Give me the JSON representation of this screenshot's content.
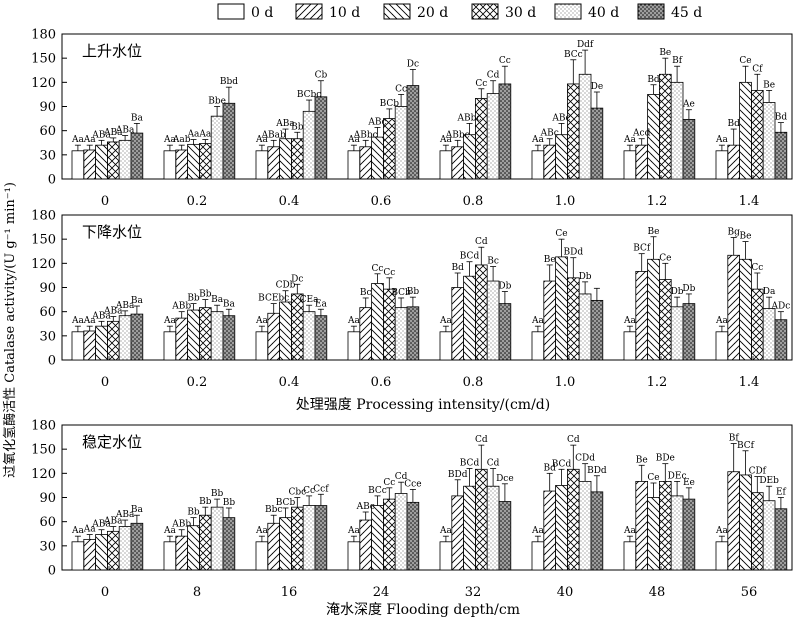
{
  "legend": [
    "0 d",
    "10 d",
    "20 d",
    "30 d",
    "40 d",
    "45 d"
  ],
  "ylabel": "过氧化氢酶活性 Catalase activity/(U g⁻¹ min⁻¹)",
  "chart_data": [
    {
      "type": "bar",
      "title": "上升水位",
      "categories": [
        "0",
        "0.2",
        "0.4",
        "0.6",
        "0.8",
        "1.0",
        "1.2",
        "1.4"
      ],
      "xlabel": "",
      "ylim": [
        0,
        180
      ],
      "yticks": [
        0,
        30,
        60,
        90,
        120,
        150,
        180
      ],
      "series": [
        {
          "name": "0 d",
          "values": [
            35,
            35,
            35,
            35,
            35,
            35,
            35,
            35
          ],
          "err": [
            7,
            7,
            7,
            7,
            7,
            7,
            7,
            7
          ],
          "labels": [
            "Aa",
            "Aa",
            "Aa",
            "Aa",
            "Aa",
            "Aa",
            "Aa",
            "Aa"
          ]
        },
        {
          "name": "10 d",
          "values": [
            36,
            36,
            40,
            40,
            40,
            42,
            42,
            42
          ],
          "err": [
            6,
            6,
            8,
            8,
            8,
            8,
            8,
            20
          ],
          "labels": [
            "Aa",
            "Aab",
            "ABab",
            "ABbc",
            "ABbc",
            "ABc",
            "Acd",
            "Bd"
          ]
        },
        {
          "name": "20 d",
          "values": [
            42,
            43,
            50,
            52,
            55,
            55,
            105,
            120
          ],
          "err": [
            6,
            6,
            12,
            12,
            14,
            14,
            12,
            20
          ],
          "labels": [
            "ABa",
            "Aa",
            "ABa",
            "ABc",
            "ABbc",
            "ABc",
            "Bd",
            "Ce"
          ]
        },
        {
          "name": "30 d",
          "values": [
            46,
            44,
            50,
            75,
            100,
            118,
            130,
            110
          ],
          "err": [
            5,
            5,
            8,
            12,
            12,
            30,
            20,
            20
          ],
          "labels": [
            "ABa",
            "Aa",
            "Bb",
            "BCb",
            "Cc",
            "BCc",
            "Be",
            "Cf"
          ]
        },
        {
          "name": "40 d",
          "values": [
            48,
            78,
            84,
            90,
            106,
            130,
            120,
            95
          ],
          "err": [
            6,
            12,
            14,
            15,
            16,
            30,
            20,
            15
          ],
          "labels": [
            "ABa",
            "Bbe",
            "BCbc",
            "Cc",
            "Cd",
            "Ddf",
            "Bf",
            "Be"
          ]
        },
        {
          "name": "45 d",
          "values": [
            57,
            94,
            102,
            116,
            118,
            88,
            74,
            58
          ],
          "err": [
            12,
            20,
            20,
            20,
            22,
            20,
            12,
            12
          ],
          "labels": [
            "Ba",
            "Bbd",
            "Cb",
            "Dc",
            "Cc",
            "De",
            "Ae",
            "Bd"
          ]
        }
      ]
    },
    {
      "type": "bar",
      "title": "下降水位",
      "categories": [
        "0",
        "0.2",
        "0.4",
        "0.6",
        "0.8",
        "1.0",
        "1.2",
        "1.4"
      ],
      "xlabel": "处理强度 Processing intensity/(cm/d)",
      "ylim": [
        0,
        180
      ],
      "yticks": [
        0,
        30,
        60,
        90,
        120,
        150,
        180
      ],
      "series": [
        {
          "name": "0 d",
          "values": [
            35,
            35,
            35,
            35,
            35,
            35,
            35,
            35
          ],
          "err": [
            7,
            7,
            7,
            7,
            7,
            7,
            7,
            7
          ],
          "labels": [
            "Aa",
            "Aa",
            "Aa",
            "Aa",
            "Aa",
            "Aa",
            "Aa",
            "Aa"
          ]
        },
        {
          "name": "10 d",
          "values": [
            36,
            52,
            58,
            65,
            90,
            98,
            110,
            130
          ],
          "err": [
            6,
            8,
            12,
            12,
            18,
            20,
            22,
            22
          ],
          "labels": [
            "Aa",
            "ABb",
            "BCEbc",
            "Bc",
            "Bd",
            "Be",
            "BCf",
            "Bg"
          ]
        },
        {
          "name": "20 d",
          "values": [
            42,
            62,
            72,
            95,
            104,
            128,
            125,
            125
          ],
          "err": [
            6,
            8,
            14,
            12,
            18,
            22,
            28,
            22
          ],
          "labels": [
            "ABa",
            "Bb",
            "CDb",
            "Cc",
            "BCd",
            "Ce",
            "Be",
            "Be"
          ]
        },
        {
          "name": "30 d",
          "values": [
            48,
            65,
            82,
            88,
            118,
            102,
            100,
            88
          ],
          "err": [
            6,
            10,
            12,
            14,
            22,
            25,
            20,
            20
          ],
          "labels": [
            "ABa",
            "Bb",
            "Dc",
            "Cc",
            "Cd",
            "BDd",
            "Ce",
            "Cc"
          ]
        },
        {
          "name": "40 d",
          "values": [
            55,
            60,
            60,
            65,
            98,
            82,
            66,
            64
          ],
          "err": [
            6,
            8,
            8,
            12,
            18,
            15,
            12,
            14
          ],
          "labels": [
            "ABa",
            "Ba",
            "CEa",
            "BCb",
            "Bc",
            "Db",
            "Db",
            "Da"
          ]
        },
        {
          "name": "45 d",
          "values": [
            57,
            55,
            55,
            66,
            70,
            74,
            70,
            50
          ],
          "err": [
            10,
            8,
            8,
            12,
            15,
            15,
            12,
            10
          ],
          "labels": [
            "Ba",
            "Ba",
            "Ea",
            "Bb",
            "Db",
            "",
            "Db",
            "ADc"
          ]
        }
      ]
    },
    {
      "type": "bar",
      "title": "稳定水位",
      "categories": [
        "0",
        "8",
        "16",
        "24",
        "32",
        "40",
        "48",
        "56"
      ],
      "xlabel": "淹水深度 Flooding depth/cm",
      "ylim": [
        0,
        180
      ],
      "yticks": [
        0,
        30,
        60,
        90,
        120,
        150,
        180
      ],
      "series": [
        {
          "name": "0 d",
          "values": [
            35,
            35,
            35,
            35,
            35,
            35,
            35,
            35
          ],
          "err": [
            7,
            7,
            7,
            7,
            7,
            7,
            7,
            7
          ],
          "labels": [
            "Aa",
            "Aa",
            "Aa",
            "Aa",
            "Aa",
            "Aa",
            "Aa",
            "Aa"
          ]
        },
        {
          "name": "10 d",
          "values": [
            38,
            42,
            58,
            62,
            92,
            98,
            110,
            122
          ],
          "err": [
            6,
            8,
            10,
            10,
            20,
            22,
            20,
            35
          ],
          "labels": [
            "Aa",
            "ABb",
            "Bbc",
            "ABc",
            "BDd",
            "Bd",
            "Be",
            "Bf"
          ]
        },
        {
          "name": "20 d",
          "values": [
            44,
            55,
            65,
            80,
            104,
            105,
            90,
            118
          ],
          "err": [
            6,
            10,
            12,
            12,
            22,
            20,
            18,
            30
          ],
          "labels": [
            "ABa",
            "Bb",
            "BCb",
            "BCc",
            "BCd",
            "BCd",
            "Ce",
            "BCf"
          ]
        },
        {
          "name": "30 d",
          "values": [
            48,
            68,
            78,
            88,
            125,
            125,
            110,
            96
          ],
          "err": [
            6,
            10,
            12,
            14,
            30,
            30,
            22,
            20
          ],
          "labels": [
            "ABa",
            "Bb",
            "Cbc",
            "Cc",
            "Cd",
            "Cd",
            "BDe",
            "CDf"
          ]
        },
        {
          "name": "40 d",
          "values": [
            54,
            78,
            80,
            95,
            104,
            110,
            92,
            86
          ],
          "err": [
            8,
            10,
            12,
            14,
            22,
            22,
            18,
            18
          ],
          "labels": [
            "ABa",
            "Bb",
            "Cc",
            "Cd",
            "Cd",
            "CDd",
            "DEc",
            "DEb"
          ]
        },
        {
          "name": "45 d",
          "values": [
            58,
            65,
            80,
            84,
            85,
            97,
            88,
            76
          ],
          "err": [
            10,
            12,
            14,
            16,
            22,
            20,
            14,
            14
          ],
          "labels": [
            "Ba",
            "Bb",
            "Ccf",
            "Cce",
            "Dce",
            "BDd",
            "Ee",
            "Ef"
          ]
        }
      ]
    }
  ]
}
